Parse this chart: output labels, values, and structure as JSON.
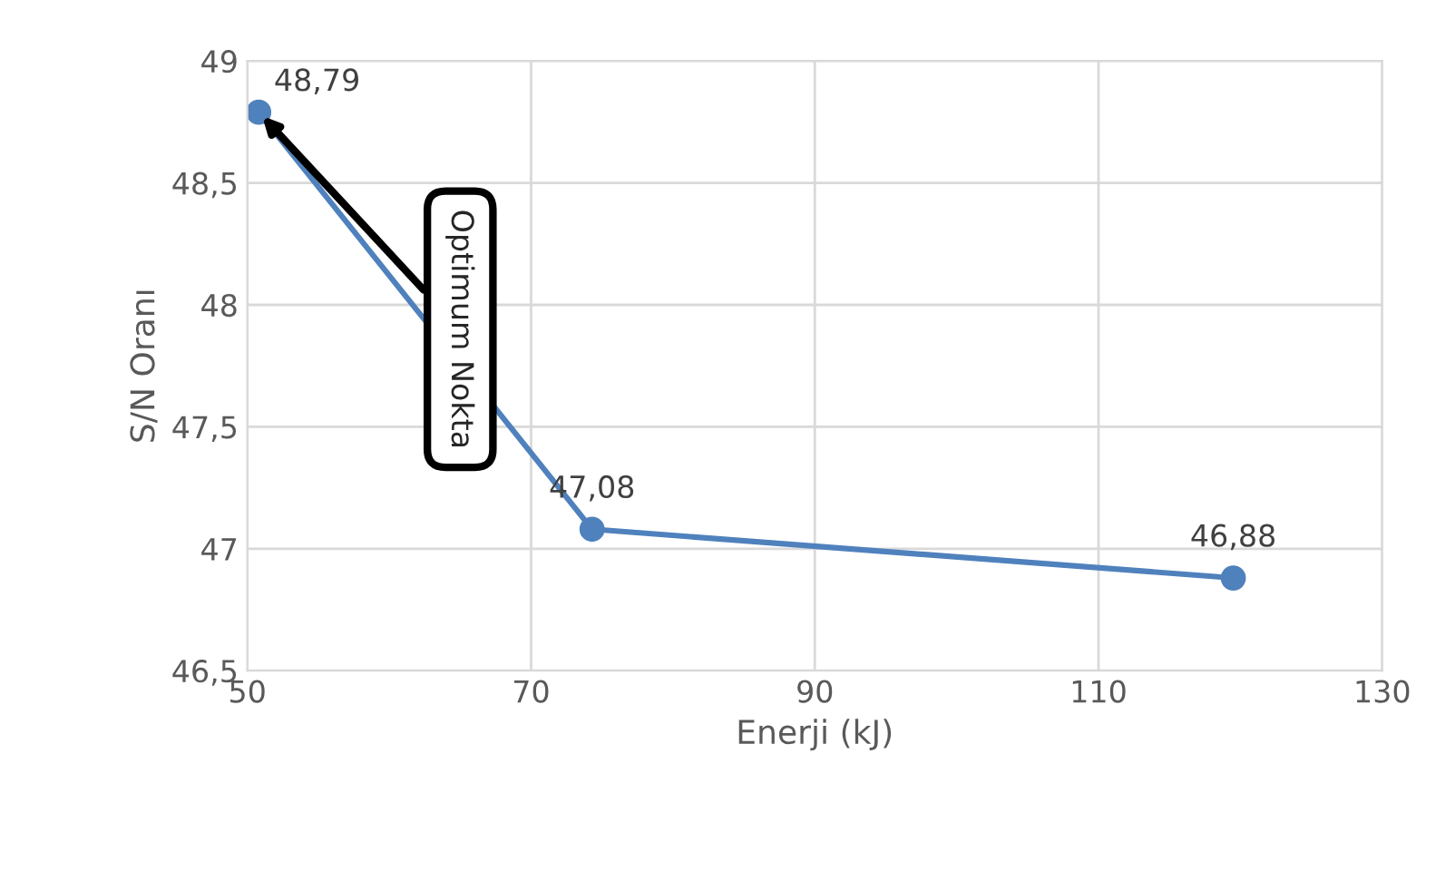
{
  "chart_data": {
    "type": "line",
    "xlabel": "Enerji (kJ)",
    "ylabel": "S/N Oranı",
    "x": [
      50.8,
      74.3,
      119.5
    ],
    "series": [
      {
        "color": "#4f81bd",
        "values": [
          48.79,
          47.08,
          46.88
        ],
        "value_labels": [
          "48,79",
          "47,08",
          "46,88"
        ]
      }
    ],
    "xlim": [
      50,
      130
    ],
    "xticks": [
      50,
      70,
      90,
      110,
      130
    ],
    "ylim": [
      46.5,
      49
    ],
    "yticks": [
      {
        "value": 46.5,
        "label": "46,5"
      },
      47,
      {
        "value": 47.5,
        "label": "47,5"
      },
      48,
      {
        "value": 48.5,
        "label": "48,5"
      },
      49
    ],
    "grid": true,
    "marker": "circle",
    "line_style": "solid",
    "annotations": [
      {
        "text": "Optimum Nokta",
        "x": 50.8,
        "y": 48.79
      }
    ]
  }
}
